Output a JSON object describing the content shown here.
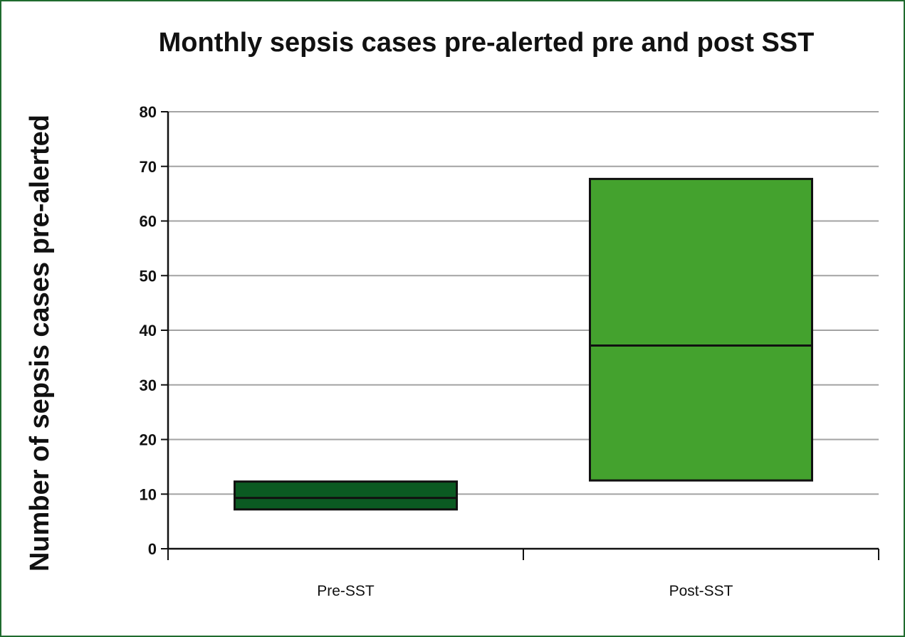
{
  "chart_data": {
    "type": "box",
    "title": "Monthly sepsis cases pre-alerted pre and post SST",
    "xlabel": "",
    "ylabel": "Number of sepsis cases pre-alerted",
    "ylim": [
      0,
      80
    ],
    "yticks": [
      "0",
      "10",
      "20",
      "30",
      "40",
      "50",
      "60",
      "70",
      "80"
    ],
    "grid": true,
    "categories": [
      "Pre-SST",
      "Post-SST"
    ],
    "boxes": [
      {
        "category": "Pre-SST",
        "q1": 7.2,
        "median": 9.3,
        "q3": 12.3,
        "color": "#0b5a22"
      },
      {
        "category": "Post-SST",
        "q1": 12.5,
        "median": 37.2,
        "q3": 67.7,
        "color": "#44a22e"
      }
    ]
  }
}
